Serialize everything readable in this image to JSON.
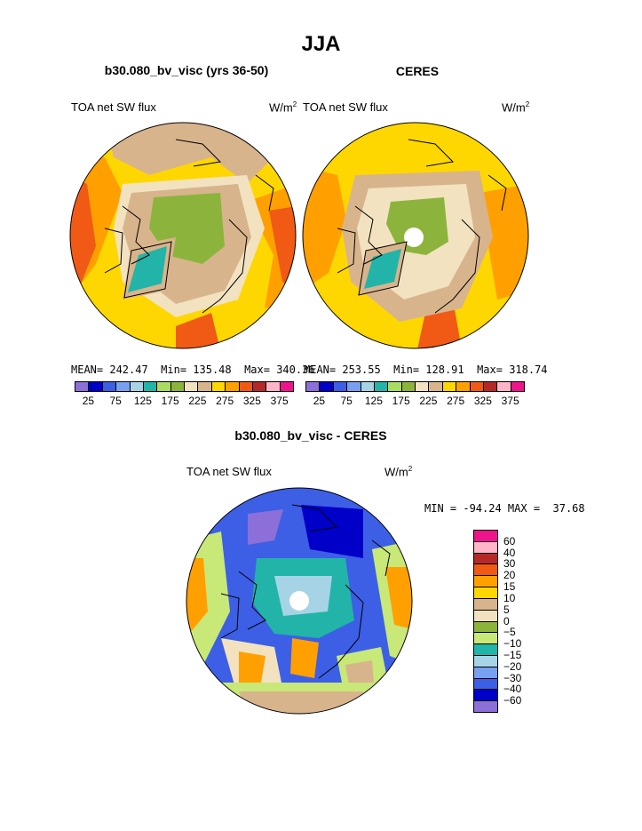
{
  "title": "JJA",
  "panel_left": {
    "heading": "b30.080_bv_visc (yrs 36-50)",
    "var_label": "TOA net SW flux",
    "unit": "W/m",
    "unit_sup": "2",
    "stats": "MEAN= 242.47  Min= 135.48  Max= 340.36"
  },
  "panel_right": {
    "heading": "CERES",
    "var_label": "TOA net SW flux",
    "unit": "W/m",
    "unit_sup": "2",
    "stats": "MEAN= 253.55  Min= 128.91  Max= 318.74"
  },
  "panel_diff": {
    "heading": "b30.080_bv_visc - CERES",
    "var_label": "TOA net SW flux",
    "unit": "W/m",
    "unit_sup": "2",
    "stats": "MIN = -94.24 MAX =  37.68"
  },
  "colorbar_abs": {
    "colors": [
      "#8c6fd8",
      "#0000c8",
      "#3c5fe6",
      "#78a0f0",
      "#a6d4e6",
      "#22b4a8",
      "#aadc64",
      "#8cb43c",
      "#f2e2c0",
      "#d8b48c",
      "#ffd700",
      "#ffa000",
      "#f05a14",
      "#b42828",
      "#ffb4c8",
      "#f0148c"
    ],
    "labels": [
      "25",
      "75",
      "125",
      "175",
      "225",
      "275",
      "325",
      "375"
    ]
  },
  "colorbar_diff": {
    "colors": [
      "#f0148c",
      "#ffb4c8",
      "#b42828",
      "#f05a14",
      "#ffa000",
      "#ffd700",
      "#d8b48c",
      "#f2e2c0",
      "#8cb43c",
      "#c8e878",
      "#22b4a8",
      "#a6d4e6",
      "#78a0f0",
      "#3c5fe6",
      "#0000c8",
      "#8c6fd8"
    ],
    "labels": [
      "60",
      "40",
      "30",
      "20",
      "15",
      "10",
      "5",
      "0",
      "−5",
      "−10",
      "−15",
      "−20",
      "−30",
      "−40",
      "−60"
    ]
  }
}
